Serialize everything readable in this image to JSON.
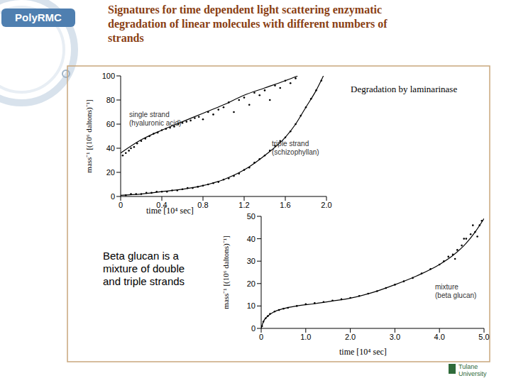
{
  "slide": {
    "logo": "PolyRMC",
    "title": "Signatures for time dependent light scattering enzymatic degradation of linear molecules with different numbers of strands",
    "note": "Degradation by laminarinase",
    "caption": "Beta glucan is a mixture of double and triple strands",
    "footer": "Tulane University"
  },
  "chart_data": [
    {
      "type": "scatter",
      "xlabel": "time [10⁴ sec]",
      "ylabel": "mass⁻¹ [(10⁶ daltons)⁻¹]",
      "xlim": [
        0,
        2
      ],
      "xticks": [
        0,
        0.4,
        0.8,
        1.2,
        1.6,
        {
          "value": 2,
          "label": "2.0"
        }
      ],
      "ylim": [
        0,
        100
      ],
      "yticks": [
        0,
        20,
        40,
        60,
        80,
        100
      ],
      "series": [
        {
          "name": "single strand",
          "note": "(hyaluronic acid)",
          "color": "#000000",
          "marker": "dot",
          "line_style": "solid",
          "x": [
            0.02,
            0.05,
            0.08,
            0.1,
            0.13,
            0.16,
            0.2,
            0.24,
            0.28,
            0.32,
            0.36,
            0.4,
            0.44,
            0.48,
            0.52,
            0.56,
            0.6,
            0.64,
            0.68,
            0.72,
            0.76,
            0.8,
            0.85,
            0.9,
            0.95,
            1.0,
            1.05,
            1.1,
            1.15,
            1.2,
            1.25,
            1.3,
            1.35,
            1.4,
            1.45,
            1.5,
            1.55,
            1.6,
            1.65,
            1.7
          ],
          "values": [
            34,
            36,
            38,
            40,
            41,
            44,
            46,
            48,
            50,
            52,
            53,
            55,
            56,
            57,
            58,
            60,
            61,
            62,
            63,
            65,
            66,
            64,
            70,
            68,
            72,
            74,
            78,
            70,
            80,
            82,
            76,
            86,
            84,
            88,
            80,
            92,
            90,
            96,
            94,
            98
          ],
          "fit": {
            "x": [
              0,
              0.2,
              0.4,
              0.6,
              0.8,
              1.0,
              1.2,
              1.4,
              1.6,
              1.72
            ],
            "values": [
              36,
              47,
              55,
              62,
              69,
              76,
              84,
              90,
              96,
              100
            ]
          }
        },
        {
          "name": "triple strand",
          "note": "(schizophyllan)",
          "color": "#000000",
          "marker": "dot",
          "line_style": "solid",
          "x": [
            0.05,
            0.1,
            0.15,
            0.2,
            0.25,
            0.3,
            0.35,
            0.4,
            0.45,
            0.5,
            0.55,
            0.6,
            0.65,
            0.7,
            0.75,
            0.8,
            0.85,
            0.9,
            0.95,
            1.0,
            1.05,
            1.1,
            1.15,
            1.2,
            1.25,
            1.3,
            1.35,
            1.4,
            1.45,
            1.5,
            1.55,
            1.6,
            1.65,
            1.7,
            1.75,
            1.8,
            1.85,
            1.9,
            1.95
          ],
          "values": [
            1,
            2,
            2,
            2,
            3,
            3,
            4,
            4,
            4,
            5,
            5,
            6,
            7,
            7,
            8,
            9,
            10,
            11,
            12,
            14,
            15,
            17,
            19,
            22,
            24,
            28,
            31,
            34,
            38,
            42,
            46,
            49,
            54,
            60,
            67,
            74,
            81,
            88,
            96
          ],
          "fit": {
            "x": [
              0,
              0.2,
              0.4,
              0.6,
              0.8,
              1.0,
              1.2,
              1.4,
              1.6,
              1.7,
              1.8,
              1.9,
              1.97
            ],
            "values": [
              1,
              2,
              4,
              6,
              9,
              14,
              22,
              34,
              49,
              60,
              74,
              88,
              100
            ]
          }
        }
      ]
    },
    {
      "type": "scatter",
      "xlabel": "time [10⁴ sec]",
      "ylabel": "mass⁻¹ [(10⁶ daltons)⁻¹]",
      "xlim": [
        0,
        5
      ],
      "xticks": [
        0,
        {
          "value": 1,
          "label": "1.0"
        },
        {
          "value": 2,
          "label": "2.0"
        },
        {
          "value": 3,
          "label": "3.0"
        },
        {
          "value": 4,
          "label": "4.0"
        },
        {
          "value": 5,
          "label": "5.0"
        }
      ],
      "ylim": [
        0,
        50
      ],
      "yticks": [
        0,
        10,
        20,
        30,
        40,
        50
      ],
      "series": [
        {
          "name": "mixture",
          "note": "(beta glucan)",
          "color": "#000000",
          "marker": "dot",
          "line_style": "solid",
          "x": [
            0.02,
            0.05,
            0.1,
            0.15,
            0.2,
            0.3,
            0.4,
            0.5,
            0.6,
            0.8,
            1.0,
            1.2,
            1.4,
            1.6,
            1.8,
            2.0,
            2.2,
            2.4,
            2.6,
            2.8,
            3.0,
            3.2,
            3.4,
            3.6,
            3.8,
            4.0,
            4.1,
            4.2,
            4.3,
            4.4,
            4.5,
            4.6,
            4.7,
            4.8,
            4.9,
            4.95,
            4.35,
            4.55,
            4.75,
            4.85
          ],
          "values": [
            1,
            3,
            4.5,
            5.5,
            6.5,
            7.5,
            8.2,
            8.8,
            9.2,
            10,
            10.8,
            11.3,
            11.8,
            12.4,
            13,
            13.6,
            14.5,
            15.5,
            16.6,
            18,
            19.5,
            21,
            22.5,
            24.5,
            26.5,
            28.5,
            30,
            32,
            33,
            35,
            37,
            40,
            42,
            43,
            46,
            48,
            31,
            40,
            46,
            41
          ],
          "fit": {
            "x": [
              0,
              0.05,
              0.15,
              0.3,
              0.5,
              0.8,
              1.2,
              1.6,
              2.0,
              2.5,
              3.0,
              3.5,
              4.0,
              4.3,
              4.6,
              4.8,
              5.0
            ],
            "values": [
              0,
              3,
              5.5,
              7.5,
              8.8,
              10,
              11,
              12.2,
              13.5,
              16,
              19.5,
              23.5,
              28.5,
              32.5,
              38,
              43,
              49
            ]
          }
        }
      ]
    }
  ]
}
